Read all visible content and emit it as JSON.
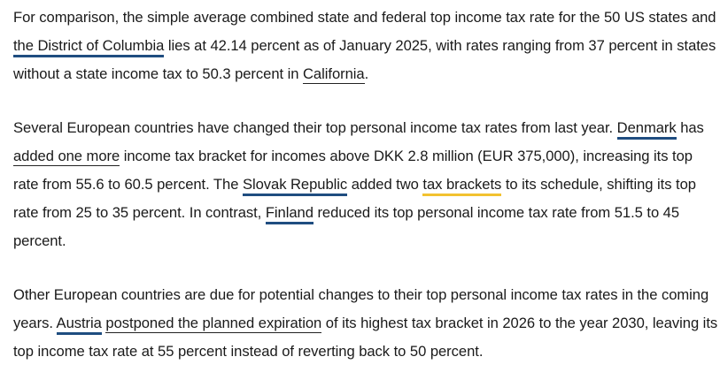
{
  "p1": {
    "t1": "For comparison, the simple average combined state and federal top income tax rate for the 50 US states and ",
    "link_dc": "the District of Columbia",
    "t2": " lies at 42.14 percent as of January 2025, with rates ranging from 37 percent in states without a state income tax to 50.3 percent in ",
    "link_california": "California",
    "t3": "."
  },
  "p2": {
    "t1": "Several European countries have changed their top personal income tax rates from last year. ",
    "link_denmark": "Denmark",
    "t2": " has ",
    "link_added": "added one more",
    "t3": " income tax bracket for incomes above DKK 2.8 million (EUR 375,000), increasing its top rate from 55.6 to 60.5 percent. The ",
    "link_slovak": "Slovak Republic",
    "t4": " added two ",
    "link_brackets": "tax brackets",
    "t5": " to its schedule, shifting its top rate from 25 to 35 percent. In contrast, ",
    "link_finland": "Finland",
    "t6": " reduced its top personal income tax rate from 51.5 to 45 percent."
  },
  "p3": {
    "t1": "Other European countries are due for potential changes to their top personal income tax rates in the coming years. ",
    "link_austria": "Austria",
    "t2": " ",
    "link_postponed": "postponed the planned expiration",
    "t3": " of its highest tax bracket in 2026 to the year 2030, leaving its top income tax rate at 55 percent instead of reverting back to 50 percent."
  },
  "colors": {
    "text": "#1a1a1a",
    "link_underline_blue": "#1f4d80",
    "link_underline_gray": "#222222",
    "link_underline_yellow": "#f2c230"
  }
}
